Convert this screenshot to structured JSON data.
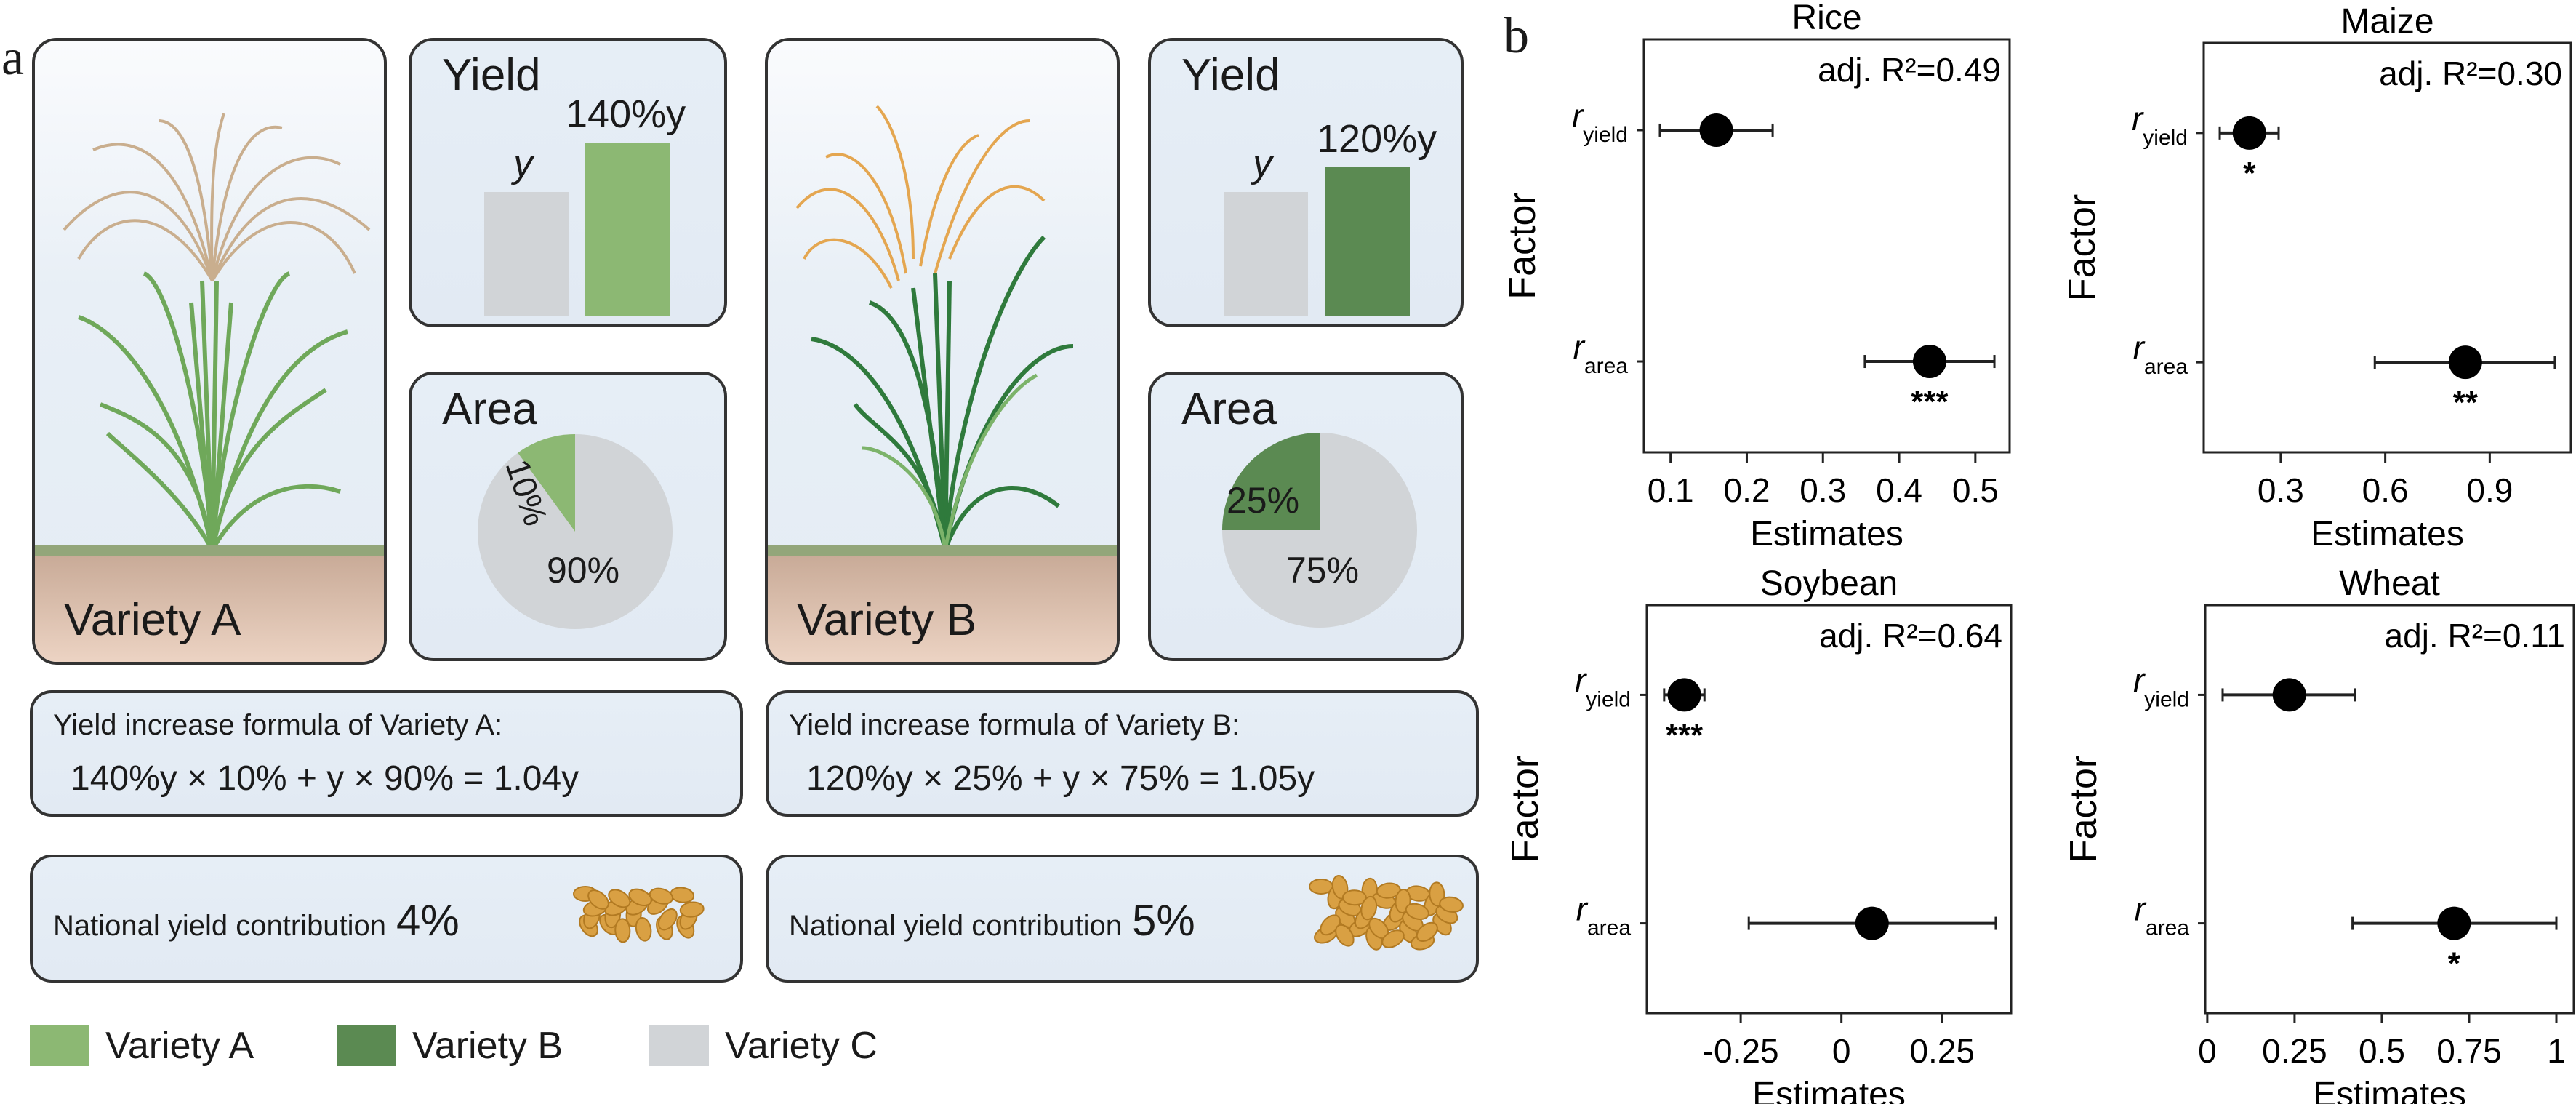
{
  "panel_a": {
    "label": "a",
    "varieties": [
      {
        "name": "Variety A",
        "yield_title": "Yield",
        "base_label": "y",
        "new_label": "140%y",
        "yield_ratio": 1.4,
        "area_title": "Area",
        "area_share_pct": 10,
        "area_share_label": "10%",
        "area_rest_label": "90%",
        "color": "#8cb873",
        "formula_title": "Yield increase formula of Variety A:",
        "formula": "140%y × 10% + y × 90% = 1.04y",
        "contribution_label": "National yield contribution",
        "contribution_value": "4%"
      },
      {
        "name": "Variety B",
        "yield_title": "Yield",
        "base_label": "y",
        "new_label": "120%y",
        "yield_ratio": 1.2,
        "area_title": "Area",
        "area_share_pct": 25,
        "area_share_label": "25%",
        "area_rest_label": "75%",
        "color": "#5b8a52",
        "formula_title": "Yield increase formula of Variety B:",
        "formula": "120%y × 25% + y × 75% = 1.05y",
        "contribution_label": "National yield contribution",
        "contribution_value": "5%"
      }
    ],
    "legend": [
      {
        "label": "Variety A",
        "color": "#8cb873"
      },
      {
        "label": "Variety B",
        "color": "#5b8a52"
      },
      {
        "label": "Variety C",
        "color": "#d1d4d7"
      }
    ]
  },
  "panel_b": {
    "label": "b"
  },
  "chart_data": [
    {
      "type": "scatter",
      "subtype": "forest",
      "title": "Rice",
      "annotation": "adj. R²=0.49",
      "xlabel": "Estimates",
      "ylabel": "Factor",
      "xlim": [
        0.065,
        0.545
      ],
      "xticks": [
        0.1,
        0.2,
        0.3,
        0.4,
        0.5
      ],
      "xtick_labels": [
        "0.1",
        "0.2",
        "0.3",
        "0.4",
        "0.5"
      ],
      "factors": [
        {
          "symbol": "r",
          "sub": "yield",
          "estimate": 0.16,
          "ci": [
            0.086,
            0.234
          ],
          "sig": ""
        },
        {
          "symbol": "r",
          "sub": "area",
          "estimate": 0.44,
          "ci": [
            0.355,
            0.525
          ],
          "sig": "***"
        }
      ]
    },
    {
      "type": "scatter",
      "subtype": "forest",
      "title": "Maize",
      "annotation": "adj. R²=0.30",
      "xlabel": "Estimates",
      "ylabel": "Factor",
      "xlim": [
        0.079,
        1.133
      ],
      "xticks": [
        0.3,
        0.6,
        0.9
      ],
      "xtick_labels": [
        "0.3",
        "0.6",
        "0.9"
      ],
      "factors": [
        {
          "symbol": "r",
          "sub": "yield",
          "estimate": 0.21,
          "ci": [
            0.125,
            0.294
          ],
          "sig": "*"
        },
        {
          "symbol": "r",
          "sub": "area",
          "estimate": 0.83,
          "ci": [
            0.57,
            1.087
          ],
          "sig": "**"
        }
      ]
    },
    {
      "type": "scatter",
      "subtype": "forest",
      "title": "Soybean",
      "annotation": "adj. R²=0.64",
      "xlabel": "Estimates",
      "ylabel": "Factor",
      "xlim": [
        -0.483,
        0.421
      ],
      "xticks": [
        -0.25,
        0,
        0.25
      ],
      "xtick_labels": [
        "-0.25",
        "0",
        "0.25"
      ],
      "factors": [
        {
          "symbol": "r",
          "sub": "yield",
          "estimate": -0.39,
          "ci": [
            -0.44,
            -0.34
          ],
          "sig": "***"
        },
        {
          "symbol": "r",
          "sub": "area",
          "estimate": 0.076,
          "ci": [
            -0.23,
            0.383
          ],
          "sig": ""
        }
      ]
    },
    {
      "type": "scatter",
      "subtype": "forest",
      "title": "Wheat",
      "annotation": "adj. R²=0.11",
      "xlabel": "Estimates",
      "ylabel": "Factor",
      "xlim": [
        -0.006,
        1.05
      ],
      "xticks": [
        0,
        0.25,
        0.5,
        0.75,
        1
      ],
      "xtick_labels": [
        "0",
        "0.25",
        "0.5",
        "0.75",
        "1"
      ],
      "factors": [
        {
          "symbol": "r",
          "sub": "yield",
          "estimate": 0.235,
          "ci": [
            0.044,
            0.424
          ],
          "sig": ""
        },
        {
          "symbol": "r",
          "sub": "area",
          "estimate": 0.707,
          "ci": [
            0.416,
            1.0
          ],
          "sig": "*"
        }
      ]
    }
  ]
}
